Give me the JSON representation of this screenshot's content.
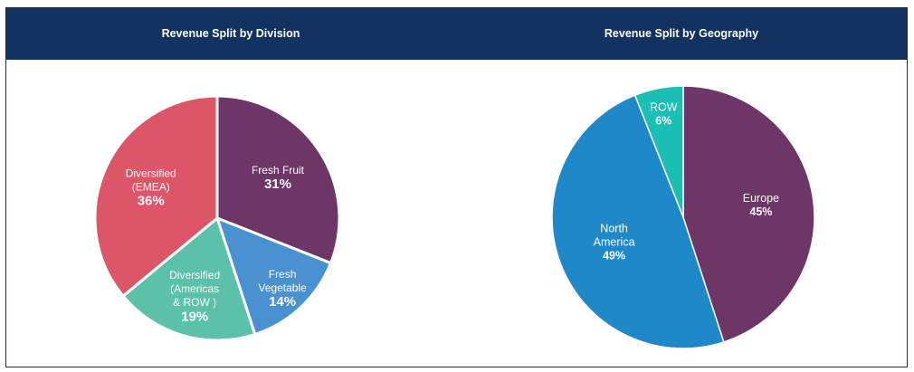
{
  "chart_data": [
    {
      "type": "pie",
      "title": "Revenue Split by Division",
      "slices": [
        {
          "label": [
            "Fresh Fruit"
          ],
          "pct_label": "31%",
          "value": 31,
          "color": "#6e3567"
        },
        {
          "label": [
            "Fresh",
            "Vegetable"
          ],
          "pct_label": "14%",
          "value": 14,
          "color": "#4a91d1"
        },
        {
          "label": [
            "Diversified",
            "(Americas",
            "& ROW )"
          ],
          "pct_label": "19%",
          "value": 19,
          "color": "#5bc1a8"
        },
        {
          "label": [
            "Diversified",
            "(EMEA)"
          ],
          "pct_label": "36%",
          "value": 36,
          "color": "#dd5668"
        }
      ]
    },
    {
      "type": "pie",
      "title": "Revenue Split by Geography",
      "slices": [
        {
          "label": [
            "Europe"
          ],
          "pct_label": "45%",
          "value": 45,
          "color": "#6e3567"
        },
        {
          "label": [
            "North",
            "America"
          ],
          "pct_label": "49%",
          "value": 49,
          "color": "#1e88c8"
        },
        {
          "label": [
            "ROW"
          ],
          "pct_label": "6%",
          "value": 6,
          "color": "#1bbfb3"
        }
      ]
    }
  ]
}
